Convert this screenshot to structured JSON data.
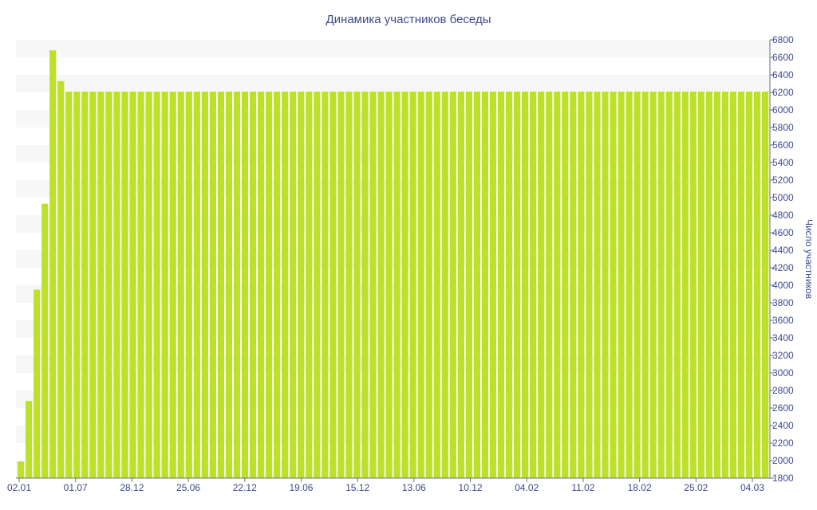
{
  "chart_data": {
    "type": "bar",
    "title": "Динамика участников беседы",
    "xlabel": "",
    "ylabel": "Число участников",
    "y_axis_side": "right",
    "ylim": [
      1800,
      6800
    ],
    "yticks": [
      1800,
      2000,
      2200,
      2400,
      2600,
      2800,
      3000,
      3200,
      3400,
      3600,
      3800,
      4000,
      4200,
      4400,
      4600,
      4800,
      5000,
      5200,
      5400,
      5600,
      5800,
      6000,
      6200,
      6400,
      6600,
      6800
    ],
    "x_tick_labels": [
      "02.01",
      "01.07",
      "28.12",
      "25.06",
      "22.12",
      "19.06",
      "15.12",
      "13.06",
      "10.12",
      "04.02",
      "11.02",
      "18.02",
      "25.02",
      "04.03"
    ],
    "grid": "horizontal alternating bands",
    "bar_color": "#bde02b",
    "values": [
      1990,
      2680,
      3950,
      4930,
      6680,
      6330,
      6210,
      6210,
      6210,
      6210,
      6210,
      6210,
      6210,
      6210,
      6210,
      6210,
      6210,
      6210,
      6210,
      6210,
      6210,
      6210,
      6210,
      6210,
      6210,
      6210,
      6210,
      6210,
      6210,
      6210,
      6210,
      6210,
      6210,
      6210,
      6210,
      6210,
      6210,
      6210,
      6210,
      6210,
      6210,
      6210,
      6210,
      6210,
      6210,
      6210,
      6210,
      6210,
      6210,
      6210,
      6210,
      6210,
      6210,
      6210,
      6210,
      6210,
      6210,
      6210,
      6210,
      6210,
      6210,
      6210,
      6210,
      6210,
      6210,
      6210,
      6210,
      6210,
      6210,
      6210,
      6210,
      6210,
      6210,
      6210,
      6210,
      6210,
      6210,
      6210,
      6210,
      6210,
      6210,
      6210,
      6210,
      6210,
      6210,
      6210,
      6210,
      6210,
      6210,
      6210,
      6210,
      6210,
      6210,
      6210
    ]
  }
}
